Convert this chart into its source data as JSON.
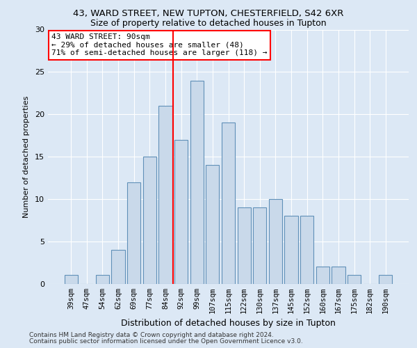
{
  "title1": "43, WARD STREET, NEW TUPTON, CHESTERFIELD, S42 6XR",
  "title2": "Size of property relative to detached houses in Tupton",
  "xlabel": "Distribution of detached houses by size in Tupton",
  "ylabel": "Number of detached properties",
  "bar_labels": [
    "39sqm",
    "47sqm",
    "54sqm",
    "62sqm",
    "69sqm",
    "77sqm",
    "84sqm",
    "92sqm",
    "99sqm",
    "107sqm",
    "115sqm",
    "122sqm",
    "130sqm",
    "137sqm",
    "145sqm",
    "152sqm",
    "160sqm",
    "167sqm",
    "175sqm",
    "182sqm",
    "190sqm"
  ],
  "bar_values": [
    1,
    0,
    1,
    4,
    12,
    15,
    21,
    17,
    24,
    14,
    19,
    9,
    9,
    10,
    8,
    8,
    2,
    2,
    1,
    0,
    1
  ],
  "bar_color": "#c9d9ea",
  "bar_edge_color": "#6090b8",
  "vline_color": "red",
  "annotation_title": "43 WARD STREET: 90sqm",
  "annotation_line1": "← 29% of detached houses are smaller (48)",
  "annotation_line2": "71% of semi-detached houses are larger (118) →",
  "annotation_box_color": "white",
  "annotation_box_edge": "red",
  "ylim": [
    0,
    30
  ],
  "yticks": [
    0,
    5,
    10,
    15,
    20,
    25,
    30
  ],
  "footnote1": "Contains HM Land Registry data © Crown copyright and database right 2024.",
  "footnote2": "Contains public sector information licensed under the Open Government Licence v3.0.",
  "bg_color": "#dce8f5",
  "plot_bg_color": "#dce8f5",
  "grid_color": "#ffffff",
  "title1_fontsize": 9.5,
  "title2_fontsize": 9,
  "ylabel_fontsize": 8,
  "xlabel_fontsize": 9,
  "tick_fontsize": 7.5,
  "annot_fontsize": 8,
  "footnote_fontsize": 6.5
}
